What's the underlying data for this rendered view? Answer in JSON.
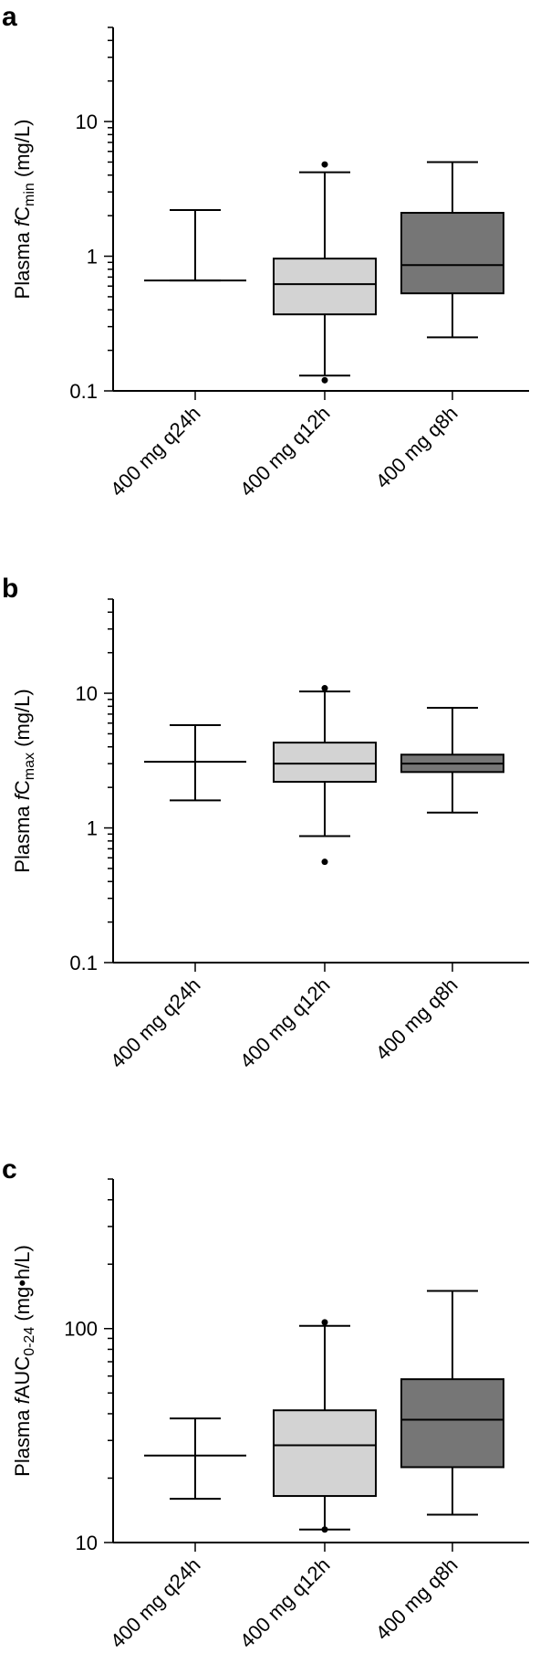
{
  "chart_data": [
    {
      "type": "box",
      "panel_letter": "a",
      "ylabel": {
        "pre": "Plasma ",
        "italic": "f",
        "main": "C",
        "sub": "min",
        "post": " (mg/L)"
      },
      "yscale": "log",
      "ylim": [
        0.1,
        50
      ],
      "yticks": [
        0.1,
        1,
        10
      ],
      "ytick_labels": [
        "0.1",
        "1",
        "10"
      ],
      "categories": [
        "400 mg q24h",
        "400 mg q12h",
        "400 mg q8h"
      ],
      "boxes": [
        {
          "whisker_low": 0.66,
          "q1": 0.66,
          "median": 0.66,
          "q3": 0.66,
          "whisker_high": 2.2,
          "outliers": [],
          "fill": "#ffffff"
        },
        {
          "whisker_low": 0.13,
          "q1": 0.37,
          "median": 0.62,
          "q3": 0.96,
          "whisker_high": 4.2,
          "outliers": [
            4.8,
            0.12
          ],
          "fill": "#d3d3d3"
        },
        {
          "whisker_low": 0.25,
          "q1": 0.53,
          "median": 0.86,
          "q3": 2.1,
          "whisker_high": 5.0,
          "outliers": [],
          "fill": "#767676"
        }
      ]
    },
    {
      "type": "box",
      "panel_letter": "b",
      "ylabel": {
        "pre": "Plasma ",
        "italic": "f",
        "main": "C",
        "sub": "max",
        "post": " (mg/L)"
      },
      "yscale": "log",
      "ylim": [
        0.1,
        50
      ],
      "yticks": [
        0.1,
        1,
        10
      ],
      "ytick_labels": [
        "0.1",
        "1",
        "10"
      ],
      "categories": [
        "400 mg q24h",
        "400 mg q12h",
        "400 mg q8h"
      ],
      "boxes": [
        {
          "whisker_low": 1.6,
          "q1": 3.1,
          "median": 3.1,
          "q3": 3.1,
          "whisker_high": 5.8,
          "outliers": [],
          "fill": "#ffffff"
        },
        {
          "whisker_low": 0.87,
          "q1": 2.2,
          "median": 3.0,
          "q3": 4.3,
          "whisker_high": 10.3,
          "outliers": [
            10.9,
            0.56
          ],
          "fill": "#d3d3d3"
        },
        {
          "whisker_low": 1.3,
          "q1": 2.6,
          "median": 3.0,
          "q3": 3.5,
          "whisker_high": 7.8,
          "outliers": [],
          "fill": "#767676"
        }
      ]
    },
    {
      "type": "box",
      "panel_letter": "c",
      "ylabel": {
        "pre": "Plasma ",
        "italic": "f",
        "main": "AUC",
        "sub": "0-24",
        "post": " (mg•h/L)"
      },
      "yscale": "log",
      "ylim": [
        10,
        500
      ],
      "yticks": [
        10,
        100
      ],
      "ytick_labels": [
        "10",
        "100"
      ],
      "categories": [
        "400 mg q24h",
        "400 mg q12h",
        "400 mg q8h"
      ],
      "boxes": [
        {
          "whisker_low": 16,
          "q1": 25.5,
          "median": 25.5,
          "q3": 25.5,
          "whisker_high": 38,
          "outliers": [],
          "fill": "#ffffff"
        },
        {
          "whisker_low": 11.5,
          "q1": 16.5,
          "median": 28.5,
          "q3": 41.5,
          "whisker_high": 103,
          "outliers": [
            107,
            11.5
          ],
          "fill": "#d3d3d3"
        },
        {
          "whisker_low": 13.5,
          "q1": 22.5,
          "median": 37.5,
          "q3": 58,
          "whisker_high": 150,
          "outliers": [],
          "fill": "#767676"
        }
      ]
    }
  ]
}
